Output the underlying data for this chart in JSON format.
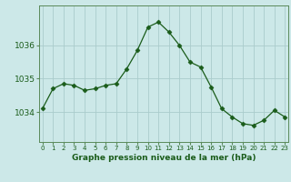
{
  "x": [
    0,
    1,
    2,
    3,
    4,
    5,
    6,
    7,
    8,
    9,
    10,
    11,
    12,
    13,
    14,
    15,
    16,
    17,
    18,
    19,
    20,
    21,
    22,
    23
  ],
  "y": [
    1034.1,
    1034.7,
    1034.85,
    1034.8,
    1034.65,
    1034.7,
    1034.8,
    1034.85,
    1035.3,
    1035.85,
    1036.55,
    1036.7,
    1036.4,
    1036.0,
    1035.5,
    1035.35,
    1034.75,
    1034.1,
    1033.85,
    1033.65,
    1033.6,
    1033.75,
    1034.05,
    1033.85
  ],
  "line_color": "#1a5c1a",
  "marker": "D",
  "marker_size": 2.5,
  "bg_color": "#cce8e8",
  "grid_color": "#aacccc",
  "xlabel": "Graphe pression niveau de la mer (hPa)",
  "tick_color": "#1a5c1a",
  "spine_color": "#5a8a5a",
  "yticks": [
    1034,
    1035,
    1036
  ],
  "ylim": [
    1033.1,
    1037.2
  ],
  "xlim": [
    -0.3,
    23.3
  ],
  "xtick_fontsize": 5.0,
  "ytick_fontsize": 6.5,
  "xlabel_fontsize": 6.5
}
